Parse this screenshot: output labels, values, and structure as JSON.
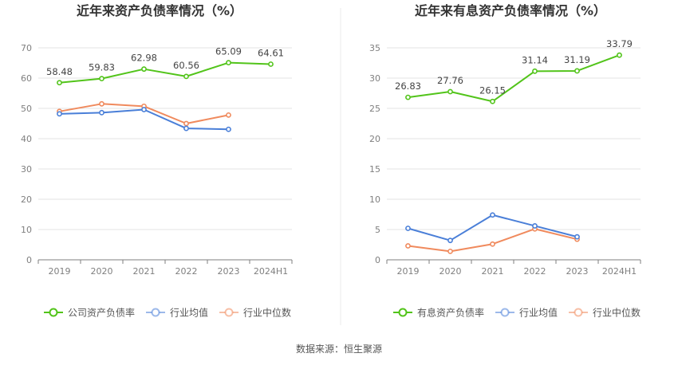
{
  "source": "数据来源：恒生聚源",
  "chart_data": [
    {
      "type": "line",
      "title": "近年来资产负债率情况（%）",
      "categories": [
        "2019",
        "2020",
        "2021",
        "2022",
        "2023",
        "2024H1"
      ],
      "ylim": [
        0,
        70
      ],
      "yticks": [
        0,
        10,
        20,
        30,
        40,
        50,
        60,
        70
      ],
      "grid": true,
      "legend_position": "bottom",
      "series": [
        {
          "name": "公司资产负债率",
          "color": "#52c41a",
          "values": [
            58.48,
            59.83,
            62.98,
            60.56,
            65.09,
            64.61
          ],
          "labels": [
            "58.48",
            "59.83",
            "62.98",
            "60.56",
            "65.09",
            "64.61"
          ]
        },
        {
          "name": "行业均值",
          "color": "#4a7fd8",
          "values": [
            48.2,
            48.6,
            49.6,
            43.4,
            43.1,
            null
          ]
        },
        {
          "name": "行业中位数",
          "color": "#f08a5d",
          "values": [
            49.0,
            51.5,
            50.7,
            45.0,
            47.8,
            null
          ]
        }
      ]
    },
    {
      "type": "line",
      "title": "近年来有息资产负债率情况（%）",
      "categories": [
        "2019",
        "2020",
        "2021",
        "2022",
        "2023",
        "2024H1"
      ],
      "ylim": [
        0,
        35
      ],
      "yticks": [
        0,
        5,
        10,
        15,
        20,
        25,
        30,
        35
      ],
      "grid": true,
      "legend_position": "bottom",
      "series": [
        {
          "name": "有息资产负债率",
          "color": "#52c41a",
          "values": [
            26.83,
            27.76,
            26.15,
            31.14,
            31.19,
            33.79
          ],
          "labels": [
            "26.83",
            "27.76",
            "26.15",
            "31.14",
            "31.19",
            "33.79"
          ]
        },
        {
          "name": "行业均值",
          "color": "#4a7fd8",
          "values": [
            5.2,
            3.2,
            7.4,
            5.6,
            3.8,
            null
          ]
        },
        {
          "name": "行业中位数",
          "color": "#f08a5d",
          "values": [
            2.3,
            1.4,
            2.6,
            5.1,
            3.4,
            null
          ]
        }
      ]
    }
  ]
}
